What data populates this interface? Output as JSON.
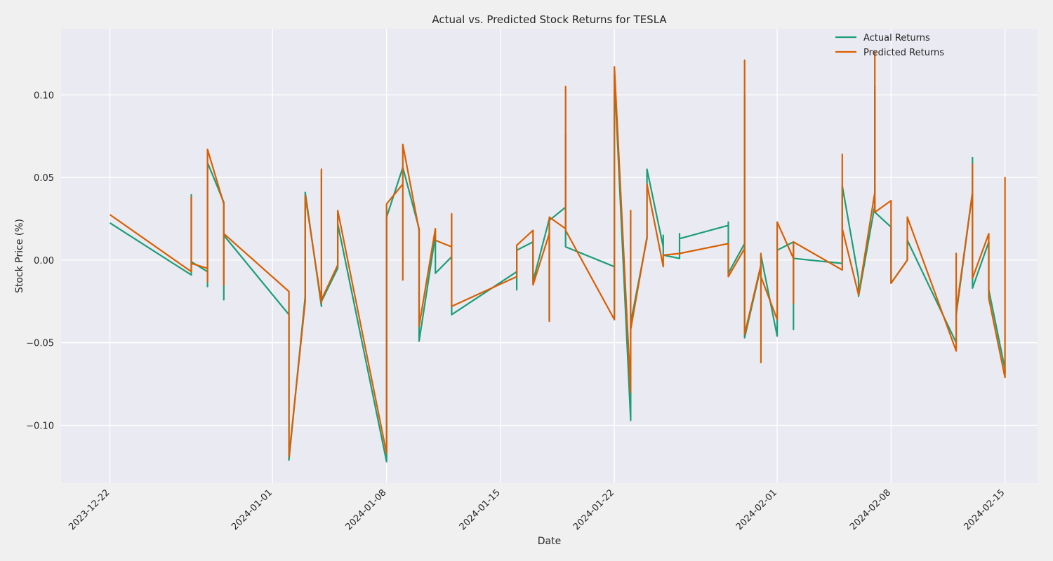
{
  "chart_data": {
    "type": "line",
    "title": "Actual vs. Predicted Stock Returns for TESLA",
    "xlabel": "Date",
    "ylabel": "Stock Price (%)",
    "xlim": [
      "2023-12-19",
      "2024-02-17"
    ],
    "ylim": [
      -0.135,
      0.14
    ],
    "x_ticks": [
      "2023-12-22",
      "2024-01-01",
      "2024-01-08",
      "2024-01-15",
      "2024-01-22",
      "2024-02-01",
      "2024-02-08",
      "2024-02-15"
    ],
    "y_ticks": [
      -0.1,
      -0.05,
      0.0,
      0.05,
      0.1
    ],
    "y_tick_labels": [
      "−0.10",
      "−0.05",
      "0.00",
      "0.05",
      "0.10"
    ],
    "grid": true,
    "legend_position": "top-right",
    "colors": {
      "actual": "#1b9e77",
      "predicted": "#d95f02",
      "plot_bg": "#eaeaf2",
      "page_bg": "#f0f0f0",
      "grid": "#ffffff"
    },
    "series": [
      {
        "name": "Actual Returns",
        "points": [
          [
            "2023-12-22",
            0.0225
          ],
          [
            "2023-12-27",
            -0.009
          ],
          [
            "2023-12-27",
            0.0395
          ],
          [
            "2023-12-27",
            -0.001
          ],
          [
            "2023-12-28",
            -0.007
          ],
          [
            "2023-12-28",
            -0.016
          ],
          [
            "2023-12-28",
            0.059
          ],
          [
            "2023-12-29",
            0.035
          ],
          [
            "2023-12-29",
            -0.024
          ],
          [
            "2023-12-29",
            0.015
          ],
          [
            "2024-01-02",
            -0.033
          ],
          [
            "2024-01-02",
            -0.121
          ],
          [
            "2024-01-03",
            -0.022
          ],
          [
            "2024-01-03",
            0.041
          ],
          [
            "2024-01-04",
            -0.028
          ],
          [
            "2024-01-04",
            0.054
          ],
          [
            "2024-01-04",
            -0.025
          ],
          [
            "2024-01-05",
            -0.005
          ],
          [
            "2024-01-05",
            0.022
          ],
          [
            "2024-01-08",
            -0.122
          ],
          [
            "2024-01-08",
            0.026
          ],
          [
            "2024-01-09",
            0.056
          ],
          [
            "2024-01-10",
            0.019
          ],
          [
            "2024-01-10",
            -0.049
          ],
          [
            "2024-01-11",
            0.015
          ],
          [
            "2024-01-11",
            -0.008
          ],
          [
            "2024-01-12",
            0.002
          ],
          [
            "2024-01-12",
            0.027
          ],
          [
            "2024-01-12",
            -0.033
          ],
          [
            "2024-01-16",
            -0.007
          ],
          [
            "2024-01-16",
            -0.018
          ],
          [
            "2024-01-16",
            0.006
          ],
          [
            "2024-01-17",
            0.011
          ],
          [
            "2024-01-17",
            -0.013
          ],
          [
            "2024-01-18",
            0.025
          ],
          [
            "2024-01-18",
            -0.036
          ],
          [
            "2024-01-18",
            0.024
          ],
          [
            "2024-01-19",
            0.032
          ],
          [
            "2024-01-19",
            0.076
          ],
          [
            "2024-01-19",
            0.008
          ],
          [
            "2024-01-22",
            -0.004
          ],
          [
            "2024-01-22",
            -0.036
          ],
          [
            "2024-01-22",
            0.112
          ],
          [
            "2024-01-23",
            -0.097
          ],
          [
            "2024-01-23",
            0.024
          ],
          [
            "2024-01-23",
            -0.038
          ],
          [
            "2024-01-24",
            0.013
          ],
          [
            "2024-01-24",
            0.055
          ],
          [
            "2024-01-25",
            0.008
          ],
          [
            "2024-01-25",
            0.015
          ],
          [
            "2024-01-25",
            0.003
          ],
          [
            "2024-01-26",
            0.001
          ],
          [
            "2024-01-26",
            0.016
          ],
          [
            "2024-01-26",
            0.013
          ],
          [
            "2024-01-29",
            0.021
          ],
          [
            "2024-01-29",
            0.023
          ],
          [
            "2024-01-29",
            -0.008
          ],
          [
            "2024-01-30",
            0.01
          ],
          [
            "2024-01-30",
            0.1
          ],
          [
            "2024-01-30",
            -0.047
          ],
          [
            "2024-01-31",
            -0.004
          ],
          [
            "2024-01-31",
            0.003
          ],
          [
            "2024-02-01",
            -0.046
          ],
          [
            "2024-02-01",
            0.006
          ],
          [
            "2024-02-02",
            0.011
          ],
          [
            "2024-02-02",
            -0.042
          ],
          [
            "2024-02-02",
            0.001
          ],
          [
            "2024-02-05",
            -0.002
          ],
          [
            "2024-02-05",
            0.045
          ],
          [
            "2024-02-06",
            -0.011
          ],
          [
            "2024-02-06",
            -0.022
          ],
          [
            "2024-02-07",
            0.033
          ],
          [
            "2024-02-07",
            0.105
          ],
          [
            "2024-02-07",
            0.029
          ],
          [
            "2024-02-08",
            0.02
          ],
          [
            "2024-02-08",
            -0.014
          ],
          [
            "2024-02-09",
            0.0
          ],
          [
            "2024-02-09",
            0.012
          ],
          [
            "2024-02-12",
            -0.05
          ],
          [
            "2024-02-12",
            -0.033
          ],
          [
            "2024-02-13",
            0.041
          ],
          [
            "2024-02-13",
            0.062
          ],
          [
            "2024-02-13",
            -0.017
          ],
          [
            "2024-02-14",
            0.011
          ],
          [
            "2024-02-14",
            -0.018
          ],
          [
            "2024-02-15",
            -0.066
          ],
          [
            "2024-02-15",
            -0.069
          ]
        ]
      },
      {
        "name": "Predicted Returns",
        "points": [
          [
            "2023-12-22",
            0.0275
          ],
          [
            "2023-12-27",
            -0.007
          ],
          [
            "2023-12-27",
            0.038
          ],
          [
            "2023-12-27",
            -0.002
          ],
          [
            "2023-12-28",
            -0.005
          ],
          [
            "2023-12-28",
            -0.013
          ],
          [
            "2023-12-28",
            0.067
          ],
          [
            "2023-12-29",
            0.034
          ],
          [
            "2023-12-29",
            -0.015
          ],
          [
            "2023-12-29",
            0.016
          ],
          [
            "2024-01-02",
            -0.019
          ],
          [
            "2024-01-02",
            -0.119
          ],
          [
            "2024-01-03",
            -0.025
          ],
          [
            "2024-01-03",
            0.039
          ],
          [
            "2024-01-04",
            -0.026
          ],
          [
            "2024-01-04",
            0.055
          ],
          [
            "2024-01-04",
            -0.024
          ],
          [
            "2024-01-05",
            -0.003
          ],
          [
            "2024-01-05",
            0.03
          ],
          [
            "2024-01-08",
            -0.117
          ],
          [
            "2024-01-08",
            0.034
          ],
          [
            "2024-01-09",
            0.046
          ],
          [
            "2024-01-09",
            -0.012
          ],
          [
            "2024-01-09",
            0.07
          ],
          [
            "2024-01-10",
            0.018
          ],
          [
            "2024-01-10",
            -0.04
          ],
          [
            "2024-01-11",
            0.019
          ],
          [
            "2024-01-11",
            0.012
          ],
          [
            "2024-01-12",
            0.008
          ],
          [
            "2024-01-12",
            0.028
          ],
          [
            "2024-01-12",
            -0.028
          ],
          [
            "2024-01-16",
            -0.01
          ],
          [
            "2024-01-16",
            0.009
          ],
          [
            "2024-01-17",
            0.018
          ],
          [
            "2024-01-17",
            -0.015
          ],
          [
            "2024-01-18",
            0.016
          ],
          [
            "2024-01-18",
            -0.037
          ],
          [
            "2024-01-18",
            0.026
          ],
          [
            "2024-01-19",
            0.019
          ],
          [
            "2024-01-19",
            0.105
          ],
          [
            "2024-01-19",
            0.018
          ],
          [
            "2024-01-22",
            -0.036
          ],
          [
            "2024-01-22",
            0.117
          ],
          [
            "2024-01-23",
            -0.08
          ],
          [
            "2024-01-23",
            0.03
          ],
          [
            "2024-01-23",
            -0.042
          ],
          [
            "2024-01-24",
            0.014
          ],
          [
            "2024-01-24",
            0.046
          ],
          [
            "2024-01-25",
            -0.004
          ],
          [
            "2024-01-25",
            0.003
          ],
          [
            "2024-01-26",
            0.004
          ],
          [
            "2024-01-29",
            0.01
          ],
          [
            "2024-01-29",
            -0.01
          ],
          [
            "2024-01-30",
            0.007
          ],
          [
            "2024-01-30",
            0.121
          ],
          [
            "2024-01-30",
            -0.045
          ],
          [
            "2024-01-31",
            -0.003
          ],
          [
            "2024-01-31",
            0.004
          ],
          [
            "2024-01-31",
            -0.062
          ],
          [
            "2024-01-31",
            -0.01
          ],
          [
            "2024-02-01",
            -0.036
          ],
          [
            "2024-02-01",
            0.023
          ],
          [
            "2024-02-02",
            0.001
          ],
          [
            "2024-02-02",
            -0.026
          ],
          [
            "2024-02-02",
            0.011
          ],
          [
            "2024-02-05",
            -0.006
          ],
          [
            "2024-02-05",
            0.064
          ],
          [
            "2024-02-05",
            0.019
          ],
          [
            "2024-02-06",
            -0.021
          ],
          [
            "2024-02-07",
            0.041
          ],
          [
            "2024-02-07",
            0.126
          ],
          [
            "2024-02-07",
            0.029
          ],
          [
            "2024-02-08",
            0.036
          ],
          [
            "2024-02-08",
            -0.014
          ],
          [
            "2024-02-09",
            0.0
          ],
          [
            "2024-02-09",
            0.026
          ],
          [
            "2024-02-12",
            -0.055
          ],
          [
            "2024-02-12",
            0.004
          ],
          [
            "2024-02-12",
            -0.031
          ],
          [
            "2024-02-13",
            0.041
          ],
          [
            "2024-02-13",
            0.058
          ],
          [
            "2024-02-13",
            -0.011
          ],
          [
            "2024-02-14",
            0.016
          ],
          [
            "2024-02-14",
            -0.023
          ],
          [
            "2024-02-15",
            -0.071
          ],
          [
            "2024-02-15",
            0.05
          ],
          [
            "2024-02-15",
            -0.067
          ]
        ]
      }
    ]
  }
}
